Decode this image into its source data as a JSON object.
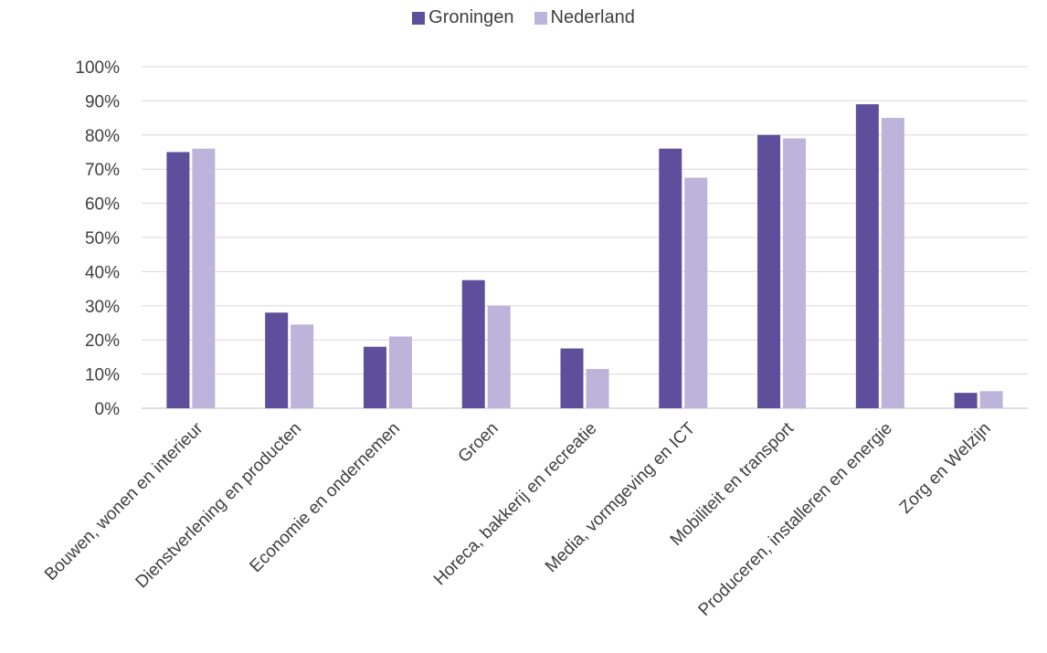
{
  "chart_data": {
    "type": "bar",
    "categories": [
      "Bouwen, wonen en interieur",
      "Dienstverlening en producten",
      "Economie en ondernemen",
      "Groen",
      "Horeca, bakkerij en recreatie",
      "Media, vormgeving en ICT",
      "Mobiliteit en transport",
      "Produceren, installeren en energie",
      "Zorg en Welzijn"
    ],
    "series": [
      {
        "name": "Groningen",
        "color": "#5e4f9c",
        "values": [
          75,
          28,
          18,
          37.5,
          17.5,
          76,
          80,
          89,
          4.5
        ]
      },
      {
        "name": "Nederland",
        "color": "#bcb4da",
        "values": [
          76,
          24.5,
          21,
          30,
          11.5,
          67.5,
          79,
          85,
          5
        ]
      }
    ],
    "ylim": [
      0,
      100
    ],
    "yticks": [
      "0%",
      "10%",
      "20%",
      "30%",
      "40%",
      "50%",
      "60%",
      "70%",
      "80%",
      "90%",
      "100%"
    ],
    "grid": true,
    "legend_position": "top-center"
  }
}
